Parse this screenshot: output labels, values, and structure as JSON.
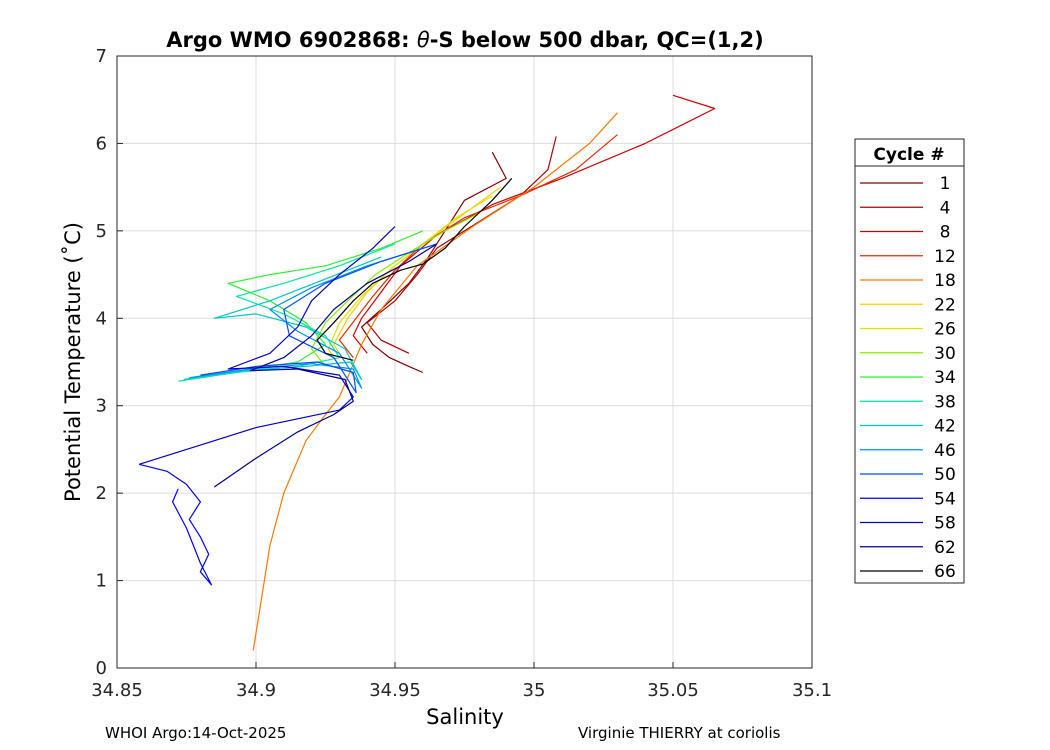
{
  "chart_data": {
    "type": "line",
    "title_prefix": "Argo WMO 6902868: ",
    "title_theta": "θ",
    "title_suffix": "-S below 500 dbar,  QC=(1,2)",
    "xlabel": "Salinity",
    "ylabel": "Potential Temperature (˚C)",
    "xlim": [
      34.85,
      35.1
    ],
    "ylim": [
      0,
      7
    ],
    "xticks": [
      "34.85",
      "34.9",
      "34.95",
      "35",
      "35.05",
      "35.1"
    ],
    "xtick_values": [
      34.85,
      34.9,
      34.95,
      35.0,
      35.05,
      35.1
    ],
    "yticks": [
      "0",
      "1",
      "2",
      "3",
      "4",
      "5",
      "6",
      "7"
    ],
    "ytick_values": [
      0,
      1,
      2,
      3,
      4,
      5,
      6,
      7
    ],
    "grid": true,
    "legend_title": "Cycle #",
    "legend_position": "outside-right",
    "series": [
      {
        "name": "1",
        "color": "#800000",
        "values": [
          [
            34.96,
            3.38
          ],
          [
            34.955,
            3.45
          ],
          [
            34.948,
            3.55
          ],
          [
            34.942,
            3.7
          ],
          [
            34.938,
            3.9
          ],
          [
            34.945,
            4.1
          ],
          [
            34.955,
            4.4
          ],
          [
            34.962,
            4.7
          ],
          [
            34.968,
            5.0
          ],
          [
            34.975,
            5.35
          ],
          [
            34.99,
            5.6
          ],
          [
            34.985,
            5.9
          ]
        ]
      },
      {
        "name": "4",
        "color": "#b00000",
        "values": [
          [
            34.955,
            3.6
          ],
          [
            34.945,
            3.75
          ],
          [
            34.94,
            3.95
          ],
          [
            34.95,
            4.2
          ],
          [
            34.958,
            4.5
          ],
          [
            34.965,
            4.8
          ],
          [
            34.98,
            5.1
          ],
          [
            34.995,
            5.4
          ],
          [
            35.005,
            5.7
          ],
          [
            35.008,
            6.08
          ]
        ]
      },
      {
        "name": "8",
        "color": "#d00000",
        "values": [
          [
            34.94,
            3.6
          ],
          [
            34.935,
            3.8
          ],
          [
            34.938,
            4.0
          ],
          [
            34.945,
            4.3
          ],
          [
            34.952,
            4.6
          ],
          [
            34.965,
            4.95
          ],
          [
            34.985,
            5.3
          ],
          [
            35.01,
            5.6
          ],
          [
            35.04,
            6.0
          ],
          [
            35.065,
            6.4
          ],
          [
            35.05,
            6.55
          ]
        ]
      },
      {
        "name": "12",
        "color": "#e82a00",
        "values": [
          [
            34.935,
            3.55
          ],
          [
            34.93,
            3.75
          ],
          [
            34.936,
            4.0
          ],
          [
            34.942,
            4.25
          ],
          [
            34.95,
            4.55
          ],
          [
            34.96,
            4.85
          ],
          [
            34.975,
            5.15
          ],
          [
            34.995,
            5.4
          ],
          [
            35.015,
            5.7
          ],
          [
            35.03,
            6.1
          ]
        ]
      },
      {
        "name": "18",
        "color": "#ff7700",
        "values": [
          [
            34.899,
            0.2
          ],
          [
            34.902,
            0.8
          ],
          [
            34.905,
            1.4
          ],
          [
            34.91,
            2.0
          ],
          [
            34.918,
            2.6
          ],
          [
            34.925,
            2.9
          ],
          [
            34.93,
            3.1
          ],
          [
            34.934,
            3.4
          ],
          [
            34.938,
            3.7
          ],
          [
            34.945,
            4.1
          ],
          [
            34.958,
            4.6
          ],
          [
            34.978,
            5.05
          ],
          [
            35.0,
            5.5
          ],
          [
            35.02,
            6.0
          ],
          [
            35.03,
            6.35
          ]
        ]
      },
      {
        "name": "22",
        "color": "#ffcc00",
        "values": [
          [
            34.932,
            3.5
          ],
          [
            34.928,
            3.7
          ],
          [
            34.933,
            4.0
          ],
          [
            34.94,
            4.3
          ],
          [
            34.95,
            4.6
          ],
          [
            34.962,
            4.9
          ],
          [
            34.975,
            5.2
          ],
          [
            34.988,
            5.5
          ]
        ]
      },
      {
        "name": "26",
        "color": "#e0e000",
        "values": [
          [
            34.93,
            3.45
          ],
          [
            34.926,
            3.65
          ],
          [
            34.93,
            3.95
          ],
          [
            34.938,
            4.25
          ],
          [
            34.948,
            4.55
          ],
          [
            34.96,
            4.85
          ],
          [
            34.972,
            5.15
          ],
          [
            34.985,
            5.4
          ]
        ]
      },
      {
        "name": "30",
        "color": "#88ee00",
        "values": [
          [
            34.925,
            3.45
          ],
          [
            34.92,
            3.65
          ],
          [
            34.925,
            3.95
          ],
          [
            34.933,
            4.2
          ],
          [
            34.943,
            4.5
          ],
          [
            34.955,
            4.75
          ],
          [
            34.968,
            5.0
          ],
          [
            34.98,
            5.2
          ]
        ]
      },
      {
        "name": "34",
        "color": "#33ee33",
        "values": [
          [
            34.875,
            3.3
          ],
          [
            34.895,
            3.4
          ],
          [
            34.915,
            3.5
          ],
          [
            34.925,
            3.7
          ],
          [
            34.918,
            3.95
          ],
          [
            34.905,
            4.2
          ],
          [
            34.89,
            4.4
          ],
          [
            34.905,
            4.5
          ],
          [
            34.925,
            4.6
          ],
          [
            34.945,
            4.8
          ],
          [
            34.96,
            5.0
          ]
        ]
      },
      {
        "name": "38",
        "color": "#00e8a0",
        "values": [
          [
            34.872,
            3.28
          ],
          [
            34.893,
            3.38
          ],
          [
            34.915,
            3.45
          ],
          [
            34.93,
            3.55
          ],
          [
            34.925,
            3.8
          ],
          [
            34.91,
            4.05
          ],
          [
            34.893,
            4.25
          ],
          [
            34.91,
            4.4
          ],
          [
            34.93,
            4.6
          ],
          [
            34.95,
            4.85
          ]
        ]
      },
      {
        "name": "42",
        "color": "#00c8c8",
        "values": [
          [
            34.874,
            3.3
          ],
          [
            34.895,
            3.4
          ],
          [
            34.918,
            3.45
          ],
          [
            34.934,
            3.5
          ],
          [
            34.938,
            3.3
          ],
          [
            34.932,
            3.65
          ],
          [
            34.918,
            3.9
          ],
          [
            34.9,
            4.05
          ],
          [
            34.885,
            4.0
          ],
          [
            34.905,
            4.2
          ],
          [
            34.925,
            4.45
          ],
          [
            34.945,
            4.7
          ]
        ]
      },
      {
        "name": "46",
        "color": "#0090ff",
        "values": [
          [
            34.876,
            3.32
          ],
          [
            34.898,
            3.42
          ],
          [
            34.92,
            3.48
          ],
          [
            34.935,
            3.42
          ],
          [
            34.938,
            3.2
          ],
          [
            34.93,
            3.6
          ],
          [
            34.915,
            3.85
          ],
          [
            34.905,
            4.1
          ],
          [
            34.92,
            4.35
          ],
          [
            34.94,
            4.6
          ],
          [
            34.96,
            4.8
          ]
        ]
      },
      {
        "name": "50",
        "color": "#0050ff",
        "values": [
          [
            34.88,
            3.35
          ],
          [
            34.9,
            3.45
          ],
          [
            34.922,
            3.5
          ],
          [
            34.935,
            3.38
          ],
          [
            34.936,
            3.15
          ],
          [
            34.928,
            3.55
          ],
          [
            34.912,
            3.8
          ],
          [
            34.91,
            4.1
          ],
          [
            34.925,
            4.4
          ],
          [
            34.945,
            4.65
          ],
          [
            34.965,
            4.85
          ]
        ]
      },
      {
        "name": "54",
        "color": "#0000ff",
        "values": [
          [
            34.858,
            2.33
          ],
          [
            34.868,
            2.25
          ],
          [
            34.875,
            2.1
          ],
          [
            34.88,
            1.9
          ],
          [
            34.876,
            1.7
          ],
          [
            34.88,
            1.5
          ],
          [
            34.883,
            1.3
          ],
          [
            34.88,
            1.1
          ],
          [
            34.884,
            0.95
          ],
          [
            34.88,
            1.2
          ],
          [
            34.875,
            1.6
          ],
          [
            34.87,
            1.9
          ],
          [
            34.872,
            2.05
          ]
        ]
      },
      {
        "name": "58",
        "color": "#0000cc",
        "values": [
          [
            34.858,
            2.33
          ],
          [
            34.87,
            2.45
          ],
          [
            34.885,
            2.6
          ],
          [
            34.9,
            2.75
          ],
          [
            34.915,
            2.85
          ],
          [
            34.93,
            2.95
          ],
          [
            34.935,
            3.1
          ],
          [
            34.93,
            3.35
          ],
          [
            34.91,
            3.45
          ],
          [
            34.89,
            3.42
          ],
          [
            34.905,
            3.6
          ],
          [
            34.915,
            3.9
          ],
          [
            34.92,
            4.2
          ],
          [
            34.93,
            4.5
          ],
          [
            34.942,
            4.8
          ],
          [
            34.95,
            5.05
          ]
        ]
      },
      {
        "name": "62",
        "color": "#000090",
        "values": [
          [
            34.885,
            2.07
          ],
          [
            34.9,
            2.4
          ],
          [
            34.915,
            2.7
          ],
          [
            34.928,
            2.9
          ],
          [
            34.935,
            3.05
          ],
          [
            34.932,
            3.3
          ],
          [
            34.915,
            3.42
          ],
          [
            34.898,
            3.4
          ],
          [
            34.91,
            3.55
          ],
          [
            34.92,
            3.8
          ],
          [
            34.928,
            4.1
          ],
          [
            34.94,
            4.4
          ],
          [
            34.955,
            4.65
          ],
          [
            34.965,
            4.85
          ]
        ]
      },
      {
        "name": "66",
        "color": "#000000",
        "values": [
          [
            34.935,
            3.52
          ],
          [
            34.925,
            3.6
          ],
          [
            34.922,
            3.75
          ],
          [
            34.928,
            3.95
          ],
          [
            34.935,
            4.2
          ],
          [
            34.942,
            4.4
          ],
          [
            34.952,
            4.55
          ],
          [
            34.96,
            4.62
          ],
          [
            34.968,
            4.8
          ],
          [
            34.975,
            5.05
          ],
          [
            34.985,
            5.35
          ],
          [
            34.992,
            5.6
          ]
        ]
      }
    ]
  },
  "footer": {
    "left": "WHOI Argo:14-Oct-2025",
    "right": "Virginie THIERRY at coriolis"
  }
}
